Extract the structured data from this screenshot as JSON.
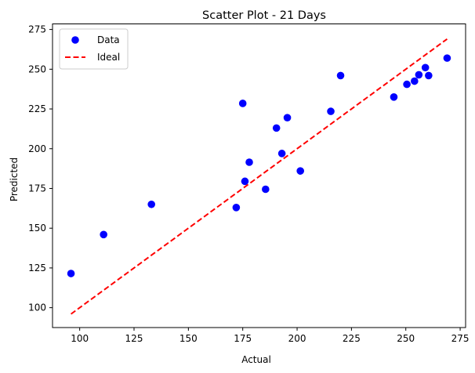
{
  "chart_data": {
    "type": "scatter",
    "title": "Scatter Plot - 21 Days",
    "xlabel": "Actual",
    "ylabel": "Predicted",
    "xlim": [
      87.5,
      277.5
    ],
    "ylim": [
      87.5,
      278.5
    ],
    "xticks": [
      100,
      125,
      150,
      175,
      200,
      225,
      250,
      275
    ],
    "yticks": [
      100,
      125,
      150,
      175,
      200,
      225,
      250,
      275
    ],
    "grid": false,
    "legend_position": "upper-left",
    "series": [
      {
        "name": "Data",
        "kind": "scatter",
        "color": "#0000ff",
        "points": [
          {
            "x": 96,
            "y": 121.5
          },
          {
            "x": 111,
            "y": 146
          },
          {
            "x": 133,
            "y": 165
          },
          {
            "x": 172,
            "y": 163
          },
          {
            "x": 175,
            "y": 228.5
          },
          {
            "x": 176,
            "y": 179.5
          },
          {
            "x": 178,
            "y": 191.5
          },
          {
            "x": 185.5,
            "y": 174.5
          },
          {
            "x": 190.5,
            "y": 213
          },
          {
            "x": 193,
            "y": 197
          },
          {
            "x": 195.5,
            "y": 219.5
          },
          {
            "x": 201.5,
            "y": 186
          },
          {
            "x": 215.5,
            "y": 223.5
          },
          {
            "x": 220,
            "y": 246
          },
          {
            "x": 244.5,
            "y": 232.5
          },
          {
            "x": 250.5,
            "y": 240.5
          },
          {
            "x": 254,
            "y": 242.5
          },
          {
            "x": 256,
            "y": 246.5
          },
          {
            "x": 259,
            "y": 251
          },
          {
            "x": 260.5,
            "y": 246
          },
          {
            "x": 269,
            "y": 257
          }
        ]
      },
      {
        "name": "Ideal",
        "kind": "line",
        "style": "dashed",
        "color": "#ff0000",
        "points": [
          {
            "x": 96,
            "y": 96
          },
          {
            "x": 269,
            "y": 269
          }
        ]
      }
    ]
  }
}
